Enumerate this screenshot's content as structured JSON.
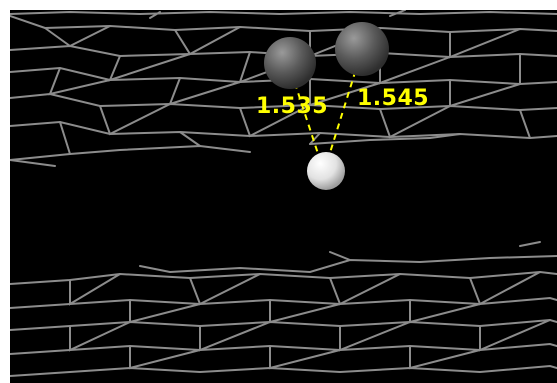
{
  "viewer": {
    "background_color": "#000000",
    "bond_color": "#8c8c8c",
    "measurement_color": "#ffff00"
  },
  "atoms": [
    {
      "name": "carbon-atom-left",
      "color": "#5a5a5a"
    },
    {
      "name": "carbon-atom-right",
      "color": "#5a5a5a"
    },
    {
      "name": "hydrogen-atom",
      "color": "#e8e8e8"
    }
  ],
  "measurements": [
    {
      "label": "1.535"
    },
    {
      "label": "1.545"
    }
  ]
}
